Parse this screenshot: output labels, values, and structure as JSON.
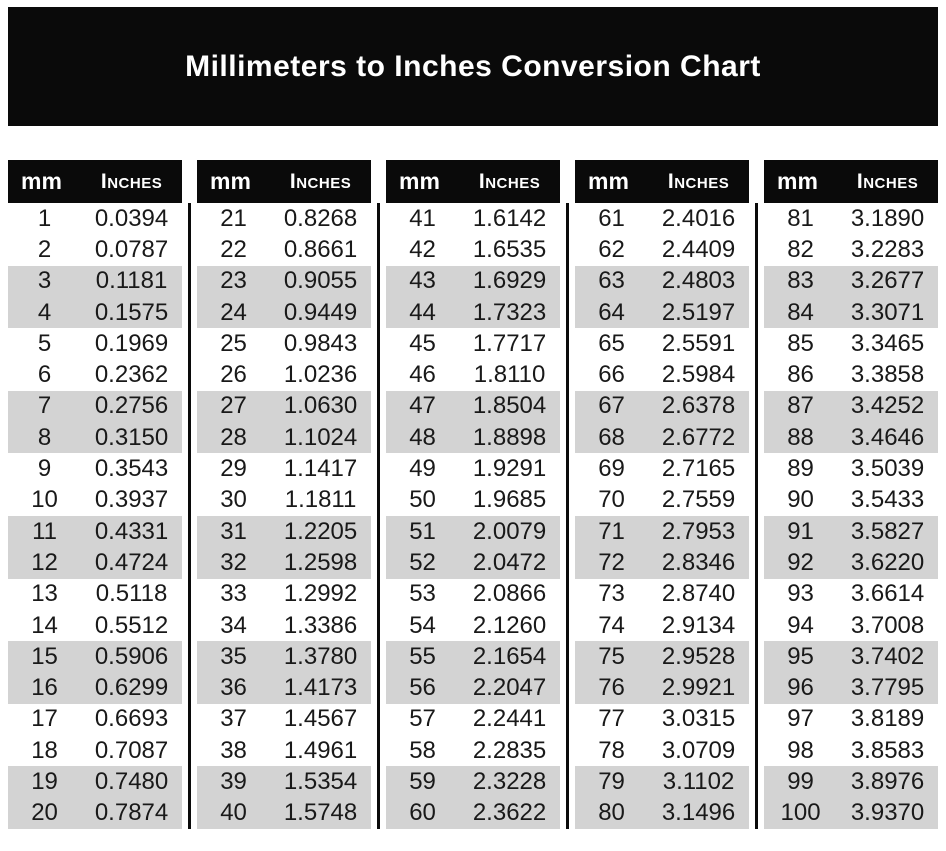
{
  "page_title": "Millimeters to Inches Conversion Chart",
  "colors": {
    "header_bg": "#0a0a0a",
    "header_text": "#ffffff",
    "stripe": "#d3d3d3",
    "body_text": "#191919",
    "background": "#ffffff"
  },
  "chart_data": {
    "type": "table",
    "title": "Millimeters to Inches Conversion Chart",
    "headers": {
      "mm": "mm",
      "inches": "Inches"
    },
    "layout": "5 column groups of 20 rows, rows shaded gray in pairs (rows 3-4, 7-8, 11-12, 15-16, 19-20 of each group)",
    "columns": [
      {
        "rows": [
          [
            "1",
            "0.0394"
          ],
          [
            "2",
            "0.0787"
          ],
          [
            "3",
            "0.1181"
          ],
          [
            "4",
            "0.1575"
          ],
          [
            "5",
            "0.1969"
          ],
          [
            "6",
            "0.2362"
          ],
          [
            "7",
            "0.2756"
          ],
          [
            "8",
            "0.3150"
          ],
          [
            "9",
            "0.3543"
          ],
          [
            "10",
            "0.3937"
          ],
          [
            "11",
            "0.4331"
          ],
          [
            "12",
            "0.4724"
          ],
          [
            "13",
            "0.5118"
          ],
          [
            "14",
            "0.5512"
          ],
          [
            "15",
            "0.5906"
          ],
          [
            "16",
            "0.6299"
          ],
          [
            "17",
            "0.6693"
          ],
          [
            "18",
            "0.7087"
          ],
          [
            "19",
            "0.7480"
          ],
          [
            "20",
            "0.7874"
          ]
        ]
      },
      {
        "rows": [
          [
            "21",
            "0.8268"
          ],
          [
            "22",
            "0.8661"
          ],
          [
            "23",
            "0.9055"
          ],
          [
            "24",
            "0.9449"
          ],
          [
            "25",
            "0.9843"
          ],
          [
            "26",
            "1.0236"
          ],
          [
            "27",
            "1.0630"
          ],
          [
            "28",
            "1.1024"
          ],
          [
            "29",
            "1.1417"
          ],
          [
            "30",
            "1.1811"
          ],
          [
            "31",
            "1.2205"
          ],
          [
            "32",
            "1.2598"
          ],
          [
            "33",
            "1.2992"
          ],
          [
            "34",
            "1.3386"
          ],
          [
            "35",
            "1.3780"
          ],
          [
            "36",
            "1.4173"
          ],
          [
            "37",
            "1.4567"
          ],
          [
            "38",
            "1.4961"
          ],
          [
            "39",
            "1.5354"
          ],
          [
            "40",
            "1.5748"
          ]
        ]
      },
      {
        "rows": [
          [
            "41",
            "1.6142"
          ],
          [
            "42",
            "1.6535"
          ],
          [
            "43",
            "1.6929"
          ],
          [
            "44",
            "1.7323"
          ],
          [
            "45",
            "1.7717"
          ],
          [
            "46",
            "1.8110"
          ],
          [
            "47",
            "1.8504"
          ],
          [
            "48",
            "1.8898"
          ],
          [
            "49",
            "1.9291"
          ],
          [
            "50",
            "1.9685"
          ],
          [
            "51",
            "2.0079"
          ],
          [
            "52",
            "2.0472"
          ],
          [
            "53",
            "2.0866"
          ],
          [
            "54",
            "2.1260"
          ],
          [
            "55",
            "2.1654"
          ],
          [
            "56",
            "2.2047"
          ],
          [
            "57",
            "2.2441"
          ],
          [
            "58",
            "2.2835"
          ],
          [
            "59",
            "2.3228"
          ],
          [
            "60",
            "2.3622"
          ]
        ]
      },
      {
        "rows": [
          [
            "61",
            "2.4016"
          ],
          [
            "62",
            "2.4409"
          ],
          [
            "63",
            "2.4803"
          ],
          [
            "64",
            "2.5197"
          ],
          [
            "65",
            "2.5591"
          ],
          [
            "66",
            "2.5984"
          ],
          [
            "67",
            "2.6378"
          ],
          [
            "68",
            "2.6772"
          ],
          [
            "69",
            "2.7165"
          ],
          [
            "70",
            "2.7559"
          ],
          [
            "71",
            "2.7953"
          ],
          [
            "72",
            "2.8346"
          ],
          [
            "73",
            "2.8740"
          ],
          [
            "74",
            "2.9134"
          ],
          [
            "75",
            "2.9528"
          ],
          [
            "76",
            "2.9921"
          ],
          [
            "77",
            "3.0315"
          ],
          [
            "78",
            "3.0709"
          ],
          [
            "79",
            "3.1102"
          ],
          [
            "80",
            "3.1496"
          ]
        ]
      },
      {
        "rows": [
          [
            "81",
            "3.1890"
          ],
          [
            "82",
            "3.2283"
          ],
          [
            "83",
            "3.2677"
          ],
          [
            "84",
            "3.3071"
          ],
          [
            "85",
            "3.3465"
          ],
          [
            "86",
            "3.3858"
          ],
          [
            "87",
            "3.4252"
          ],
          [
            "88",
            "3.4646"
          ],
          [
            "89",
            "3.5039"
          ],
          [
            "90",
            "3.5433"
          ],
          [
            "91",
            "3.5827"
          ],
          [
            "92",
            "3.6220"
          ],
          [
            "93",
            "3.6614"
          ],
          [
            "94",
            "3.7008"
          ],
          [
            "95",
            "3.7402"
          ],
          [
            "96",
            "3.7795"
          ],
          [
            "97",
            "3.8189"
          ],
          [
            "98",
            "3.8583"
          ],
          [
            "99",
            "3.8976"
          ],
          [
            "100",
            "3.9370"
          ]
        ]
      }
    ]
  }
}
